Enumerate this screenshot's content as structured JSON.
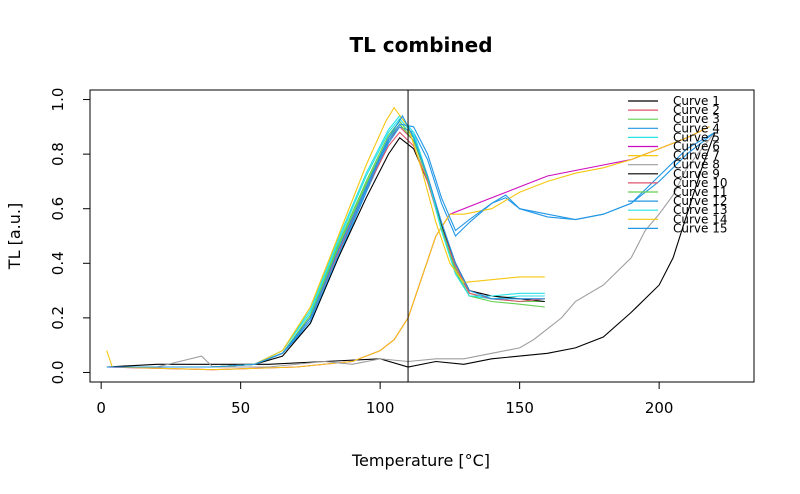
{
  "chart_data": {
    "type": "line",
    "title": "TL combined",
    "xlabel": "Temperature [°C]",
    "ylabel": "TL [a.u.]",
    "xlim": [
      -4,
      234
    ],
    "ylim": [
      -0.035,
      1.035
    ],
    "xticks": [
      0,
      50,
      100,
      150,
      200
    ],
    "yticks": [
      0.0,
      0.2,
      0.4,
      0.6,
      0.8,
      1.0
    ],
    "xtick_labels": [
      "0",
      "50",
      "100",
      "150",
      "200"
    ],
    "ytick_labels": [
      "0.0",
      "0.2",
      "0.4",
      "0.6",
      "0.8",
      "1.0"
    ],
    "vline_x": 110,
    "legend_position": "top-right",
    "series": [
      {
        "name": "Curve 1",
        "color": "#000000",
        "points": [
          [
            2,
            0.02
          ],
          [
            20,
            0.03
          ],
          [
            40,
            0.03
          ],
          [
            60,
            0.03
          ],
          [
            80,
            0.04
          ],
          [
            100,
            0.05
          ],
          [
            110,
            0.02
          ],
          [
            120,
            0.04
          ],
          [
            130,
            0.03
          ],
          [
            140,
            0.05
          ],
          [
            150,
            0.06
          ],
          [
            160,
            0.07
          ],
          [
            170,
            0.09
          ],
          [
            180,
            0.13
          ],
          [
            190,
            0.22
          ],
          [
            200,
            0.32
          ],
          [
            205,
            0.42
          ],
          [
            210,
            0.58
          ],
          [
            215,
            0.74
          ],
          [
            220,
            0.88
          ]
        ]
      },
      {
        "name": "Curve 2",
        "color": "#DF536B",
        "points": [
          [
            2,
            0.02
          ],
          [
            20,
            0.02
          ],
          [
            40,
            0.02
          ],
          [
            55,
            0.03
          ],
          [
            65,
            0.07
          ],
          [
            75,
            0.2
          ],
          [
            85,
            0.45
          ],
          [
            95,
            0.68
          ],
          [
            103,
            0.85
          ],
          [
            107,
            0.9
          ],
          [
            112,
            0.85
          ],
          [
            117,
            0.72
          ],
          [
            122,
            0.55
          ],
          [
            127,
            0.4
          ],
          [
            132,
            0.3
          ],
          [
            140,
            0.28
          ],
          [
            150,
            0.27
          ],
          [
            159,
            0.27
          ]
        ]
      },
      {
        "name": "Curve 3",
        "color": "#61D04F",
        "points": [
          [
            2,
            0.02
          ],
          [
            20,
            0.02
          ],
          [
            40,
            0.02
          ],
          [
            55,
            0.03
          ],
          [
            65,
            0.07
          ],
          [
            75,
            0.21
          ],
          [
            85,
            0.47
          ],
          [
            95,
            0.7
          ],
          [
            103,
            0.87
          ],
          [
            107,
            0.92
          ],
          [
            112,
            0.86
          ],
          [
            117,
            0.72
          ],
          [
            122,
            0.54
          ],
          [
            127,
            0.38
          ],
          [
            132,
            0.29
          ],
          [
            140,
            0.27
          ],
          [
            150,
            0.26
          ],
          [
            159,
            0.26
          ]
        ]
      },
      {
        "name": "Curve 4",
        "color": "#2297E6",
        "points": [
          [
            2,
            0.02
          ],
          [
            20,
            0.02
          ],
          [
            40,
            0.02
          ],
          [
            55,
            0.03
          ],
          [
            65,
            0.07
          ],
          [
            75,
            0.18
          ],
          [
            85,
            0.42
          ],
          [
            95,
            0.66
          ],
          [
            103,
            0.84
          ],
          [
            107,
            0.9
          ],
          [
            112,
            0.88
          ],
          [
            117,
            0.78
          ],
          [
            122,
            0.62
          ],
          [
            127,
            0.5
          ],
          [
            132,
            0.55
          ],
          [
            140,
            0.62
          ],
          [
            145,
            0.64
          ],
          [
            150,
            0.6
          ],
          [
            160,
            0.58
          ],
          [
            170,
            0.56
          ],
          [
            180,
            0.58
          ],
          [
            190,
            0.62
          ],
          [
            200,
            0.72
          ],
          [
            210,
            0.82
          ],
          [
            220,
            0.88
          ]
        ]
      },
      {
        "name": "Curve 5",
        "color": "#28E2E5",
        "points": [
          [
            2,
            0.02
          ],
          [
            20,
            0.02
          ],
          [
            40,
            0.02
          ],
          [
            55,
            0.03
          ],
          [
            65,
            0.08
          ],
          [
            75,
            0.22
          ],
          [
            85,
            0.48
          ],
          [
            95,
            0.72
          ],
          [
            103,
            0.88
          ],
          [
            107,
            0.93
          ],
          [
            112,
            0.87
          ],
          [
            117,
            0.71
          ],
          [
            122,
            0.52
          ],
          [
            127,
            0.37
          ],
          [
            132,
            0.28
          ],
          [
            140,
            0.27
          ],
          [
            150,
            0.28
          ],
          [
            159,
            0.28
          ]
        ]
      },
      {
        "name": "Curve 6",
        "color": "#CD0BBC",
        "points": [
          [
            2,
            0.02
          ],
          [
            40,
            0.01
          ],
          [
            70,
            0.02
          ],
          [
            90,
            0.04
          ],
          [
            100,
            0.08
          ],
          [
            105,
            0.12
          ],
          [
            110,
            0.2
          ],
          [
            115,
            0.35
          ],
          [
            120,
            0.5
          ],
          [
            125,
            0.58
          ],
          [
            130,
            0.6
          ],
          [
            140,
            0.64
          ],
          [
            150,
            0.68
          ],
          [
            160,
            0.72
          ],
          [
            170,
            0.74
          ],
          [
            180,
            0.76
          ],
          [
            190,
            0.78
          ],
          [
            200,
            0.82
          ],
          [
            210,
            0.86
          ],
          [
            218,
            0.9
          ]
        ]
      },
      {
        "name": "Curve 7",
        "color": "#F5C710",
        "points": [
          [
            2,
            0.08
          ],
          [
            4,
            0.02
          ],
          [
            40,
            0.01
          ],
          [
            70,
            0.02
          ],
          [
            90,
            0.04
          ],
          [
            100,
            0.08
          ],
          [
            105,
            0.12
          ],
          [
            110,
            0.2
          ],
          [
            115,
            0.35
          ],
          [
            120,
            0.5
          ],
          [
            125,
            0.58
          ],
          [
            130,
            0.58
          ],
          [
            140,
            0.6
          ],
          [
            150,
            0.66
          ],
          [
            160,
            0.7
          ],
          [
            170,
            0.73
          ],
          [
            180,
            0.75
          ],
          [
            190,
            0.78
          ],
          [
            200,
            0.82
          ],
          [
            210,
            0.86
          ],
          [
            218,
            0.9
          ]
        ]
      },
      {
        "name": "Curve 8",
        "color": "#9E9E9E",
        "points": [
          [
            2,
            0.02
          ],
          [
            20,
            0.02
          ],
          [
            36,
            0.06
          ],
          [
            40,
            0.02
          ],
          [
            60,
            0.02
          ],
          [
            80,
            0.04
          ],
          [
            90,
            0.03
          ],
          [
            100,
            0.05
          ],
          [
            110,
            0.04
          ],
          [
            120,
            0.05
          ],
          [
            130,
            0.05
          ],
          [
            140,
            0.07
          ],
          [
            150,
            0.09
          ],
          [
            155,
            0.12
          ],
          [
            160,
            0.16
          ],
          [
            165,
            0.2
          ],
          [
            170,
            0.26
          ],
          [
            180,
            0.32
          ],
          [
            190,
            0.42
          ],
          [
            195,
            0.52
          ],
          [
            200,
            0.58
          ],
          [
            205,
            0.65
          ],
          [
            210,
            0.75
          ],
          [
            220,
            0.88
          ]
        ]
      },
      {
        "name": "Curve 9",
        "color": "#000000",
        "points": [
          [
            2,
            0.02
          ],
          [
            20,
            0.02
          ],
          [
            40,
            0.02
          ],
          [
            55,
            0.03
          ],
          [
            65,
            0.06
          ],
          [
            75,
            0.18
          ],
          [
            85,
            0.42
          ],
          [
            95,
            0.64
          ],
          [
            103,
            0.8
          ],
          [
            107,
            0.86
          ],
          [
            112,
            0.82
          ],
          [
            117,
            0.7
          ],
          [
            122,
            0.54
          ],
          [
            127,
            0.4
          ],
          [
            132,
            0.3
          ],
          [
            140,
            0.28
          ],
          [
            150,
            0.27
          ],
          [
            159,
            0.26
          ]
        ]
      },
      {
        "name": "Curve 10",
        "color": "#DF536B",
        "points": [
          [
            2,
            0.02
          ],
          [
            20,
            0.02
          ],
          [
            40,
            0.02
          ],
          [
            55,
            0.03
          ],
          [
            65,
            0.07
          ],
          [
            75,
            0.2
          ],
          [
            85,
            0.44
          ],
          [
            95,
            0.67
          ],
          [
            103,
            0.83
          ],
          [
            107,
            0.88
          ],
          [
            112,
            0.83
          ],
          [
            117,
            0.7
          ],
          [
            122,
            0.53
          ],
          [
            127,
            0.39
          ],
          [
            132,
            0.29
          ],
          [
            140,
            0.27
          ],
          [
            150,
            0.26
          ],
          [
            159,
            0.27
          ]
        ]
      },
      {
        "name": "Curve 11",
        "color": "#61D04F",
        "points": [
          [
            2,
            0.02
          ],
          [
            20,
            0.02
          ],
          [
            40,
            0.02
          ],
          [
            55,
            0.03
          ],
          [
            65,
            0.07
          ],
          [
            75,
            0.21
          ],
          [
            85,
            0.46
          ],
          [
            95,
            0.69
          ],
          [
            103,
            0.86
          ],
          [
            107,
            0.91
          ],
          [
            112,
            0.85
          ],
          [
            117,
            0.71
          ],
          [
            122,
            0.53
          ],
          [
            127,
            0.37
          ],
          [
            132,
            0.28
          ],
          [
            140,
            0.26
          ],
          [
            150,
            0.25
          ],
          [
            159,
            0.24
          ]
        ]
      },
      {
        "name": "Curve 12",
        "color": "#2297E6",
        "points": [
          [
            2,
            0.02
          ],
          [
            20,
            0.02
          ],
          [
            40,
            0.02
          ],
          [
            55,
            0.03
          ],
          [
            65,
            0.07
          ],
          [
            75,
            0.19
          ],
          [
            85,
            0.43
          ],
          [
            95,
            0.67
          ],
          [
            103,
            0.85
          ],
          [
            107,
            0.91
          ],
          [
            112,
            0.9
          ],
          [
            117,
            0.8
          ],
          [
            122,
            0.64
          ],
          [
            127,
            0.52
          ],
          [
            132,
            0.56
          ],
          [
            140,
            0.62
          ],
          [
            145,
            0.65
          ],
          [
            150,
            0.6
          ],
          [
            160,
            0.57
          ],
          [
            170,
            0.56
          ],
          [
            180,
            0.58
          ],
          [
            190,
            0.62
          ],
          [
            200,
            0.7
          ],
          [
            210,
            0.8
          ],
          [
            220,
            0.88
          ]
        ]
      },
      {
        "name": "Curve 13",
        "color": "#28E2E5",
        "points": [
          [
            2,
            0.02
          ],
          [
            20,
            0.02
          ],
          [
            40,
            0.02
          ],
          [
            55,
            0.03
          ],
          [
            65,
            0.08
          ],
          [
            75,
            0.23
          ],
          [
            85,
            0.49
          ],
          [
            95,
            0.73
          ],
          [
            103,
            0.89
          ],
          [
            107,
            0.94
          ],
          [
            112,
            0.88
          ],
          [
            117,
            0.72
          ],
          [
            122,
            0.52
          ],
          [
            127,
            0.36
          ],
          [
            132,
            0.28
          ],
          [
            140,
            0.28
          ],
          [
            150,
            0.29
          ],
          [
            159,
            0.29
          ]
        ]
      },
      {
        "name": "Curve 14",
        "color": "#F5C710",
        "points": [
          [
            2,
            0.02
          ],
          [
            20,
            0.02
          ],
          [
            40,
            0.02
          ],
          [
            55,
            0.03
          ],
          [
            65,
            0.08
          ],
          [
            75,
            0.24
          ],
          [
            85,
            0.5
          ],
          [
            95,
            0.76
          ],
          [
            102,
            0.92
          ],
          [
            105,
            0.97
          ],
          [
            110,
            0.9
          ],
          [
            115,
            0.74
          ],
          [
            120,
            0.55
          ],
          [
            125,
            0.4
          ],
          [
            130,
            0.33
          ],
          [
            140,
            0.34
          ],
          [
            150,
            0.35
          ],
          [
            159,
            0.35
          ]
        ]
      },
      {
        "name": "Curve 15",
        "color": "#2297E6",
        "points": [
          [
            2,
            0.02
          ],
          [
            20,
            0.02
          ],
          [
            40,
            0.02
          ],
          [
            55,
            0.03
          ],
          [
            65,
            0.07
          ],
          [
            75,
            0.2
          ],
          [
            85,
            0.45
          ],
          [
            95,
            0.68
          ],
          [
            103,
            0.86
          ],
          [
            108,
            0.94
          ],
          [
            112,
            0.86
          ],
          [
            117,
            0.72
          ],
          [
            122,
            0.55
          ],
          [
            127,
            0.4
          ],
          [
            132,
            0.3
          ],
          [
            140,
            0.27
          ],
          [
            150,
            0.27
          ],
          [
            159,
            0.27
          ]
        ]
      }
    ]
  }
}
